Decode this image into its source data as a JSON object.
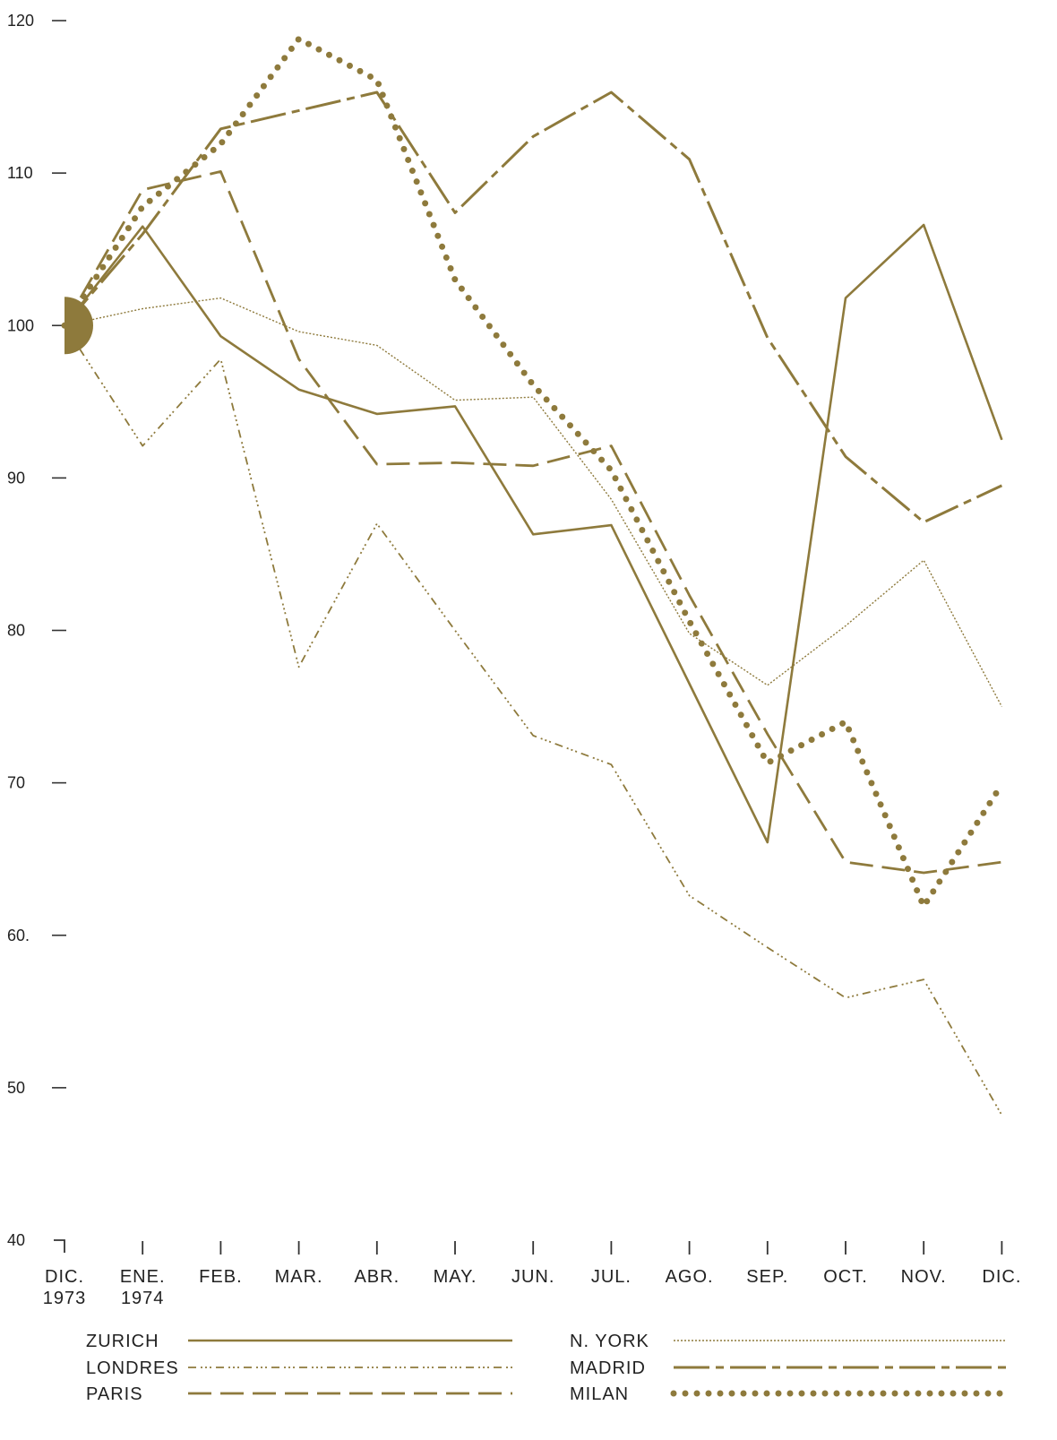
{
  "chart_data": {
    "type": "line",
    "title": "",
    "xlabel": "",
    "ylabel": "",
    "ylim": [
      40,
      120
    ],
    "y_ticks": [
      "120",
      "110",
      "100",
      "90",
      "80",
      "70",
      "60.",
      "50",
      "40"
    ],
    "categories": [
      {
        "line1": "DIC.",
        "line2": "1973"
      },
      {
        "line1": "ENE.",
        "line2": "1974"
      },
      {
        "line1": "FEB.",
        "line2": ""
      },
      {
        "line1": "MAR.",
        "line2": ""
      },
      {
        "line1": "ABR.",
        "line2": ""
      },
      {
        "line1": "MAY.",
        "line2": ""
      },
      {
        "line1": "JUN.",
        "line2": ""
      },
      {
        "line1": "JUL.",
        "line2": ""
      },
      {
        "line1": "AGO.",
        "line2": ""
      },
      {
        "line1": "SEP.",
        "line2": ""
      },
      {
        "line1": "OCT.",
        "line2": ""
      },
      {
        "line1": "NOV.",
        "line2": ""
      },
      {
        "line1": "DIC.",
        "line2": ""
      }
    ],
    "start_marker_value": 100,
    "color": "#8e7a3c",
    "legend_placement": "bottom",
    "grid": false,
    "series": [
      {
        "name": "ZURICH",
        "style": "solid",
        "values": [
          100,
          106.5,
          99.3,
          95.8,
          94.2,
          94.7,
          86.3,
          86.9,
          76.5,
          66.1,
          101.8,
          106.6,
          92.5
        ]
      },
      {
        "name": "LONDRES",
        "style": "dash-dot-dot",
        "values": [
          100,
          92.1,
          97.8,
          77.6,
          87.0,
          80.0,
          73.1,
          71.2,
          62.6,
          59.2,
          55.9,
          57.1,
          48.2
        ]
      },
      {
        "name": "PARIS",
        "style": "long-dash",
        "values": [
          100,
          108.9,
          110.1,
          97.8,
          90.9,
          91.0,
          90.8,
          92.1,
          82.3,
          73.2,
          64.8,
          64.1,
          64.8
        ]
      },
      {
        "name": "N. YORK",
        "style": "fine-dotted",
        "values": [
          100,
          101.1,
          101.8,
          99.6,
          98.7,
          95.1,
          95.3,
          88.6,
          79.8,
          76.4,
          80.3,
          84.6,
          75.0
        ]
      },
      {
        "name": "MADRID",
        "style": "dash-long-dash",
        "values": [
          100,
          106.0,
          112.9,
          114.1,
          115.3,
          107.4,
          112.4,
          115.3,
          110.9,
          99.2,
          91.4,
          87.1,
          89.5
        ]
      },
      {
        "name": "MILAN",
        "style": "dotted",
        "values": [
          100,
          107.8,
          111.9,
          118.8,
          116.1,
          103.0,
          96.1,
          90.5,
          80.6,
          71.3,
          74.0,
          61.9,
          69.9
        ]
      }
    ]
  }
}
